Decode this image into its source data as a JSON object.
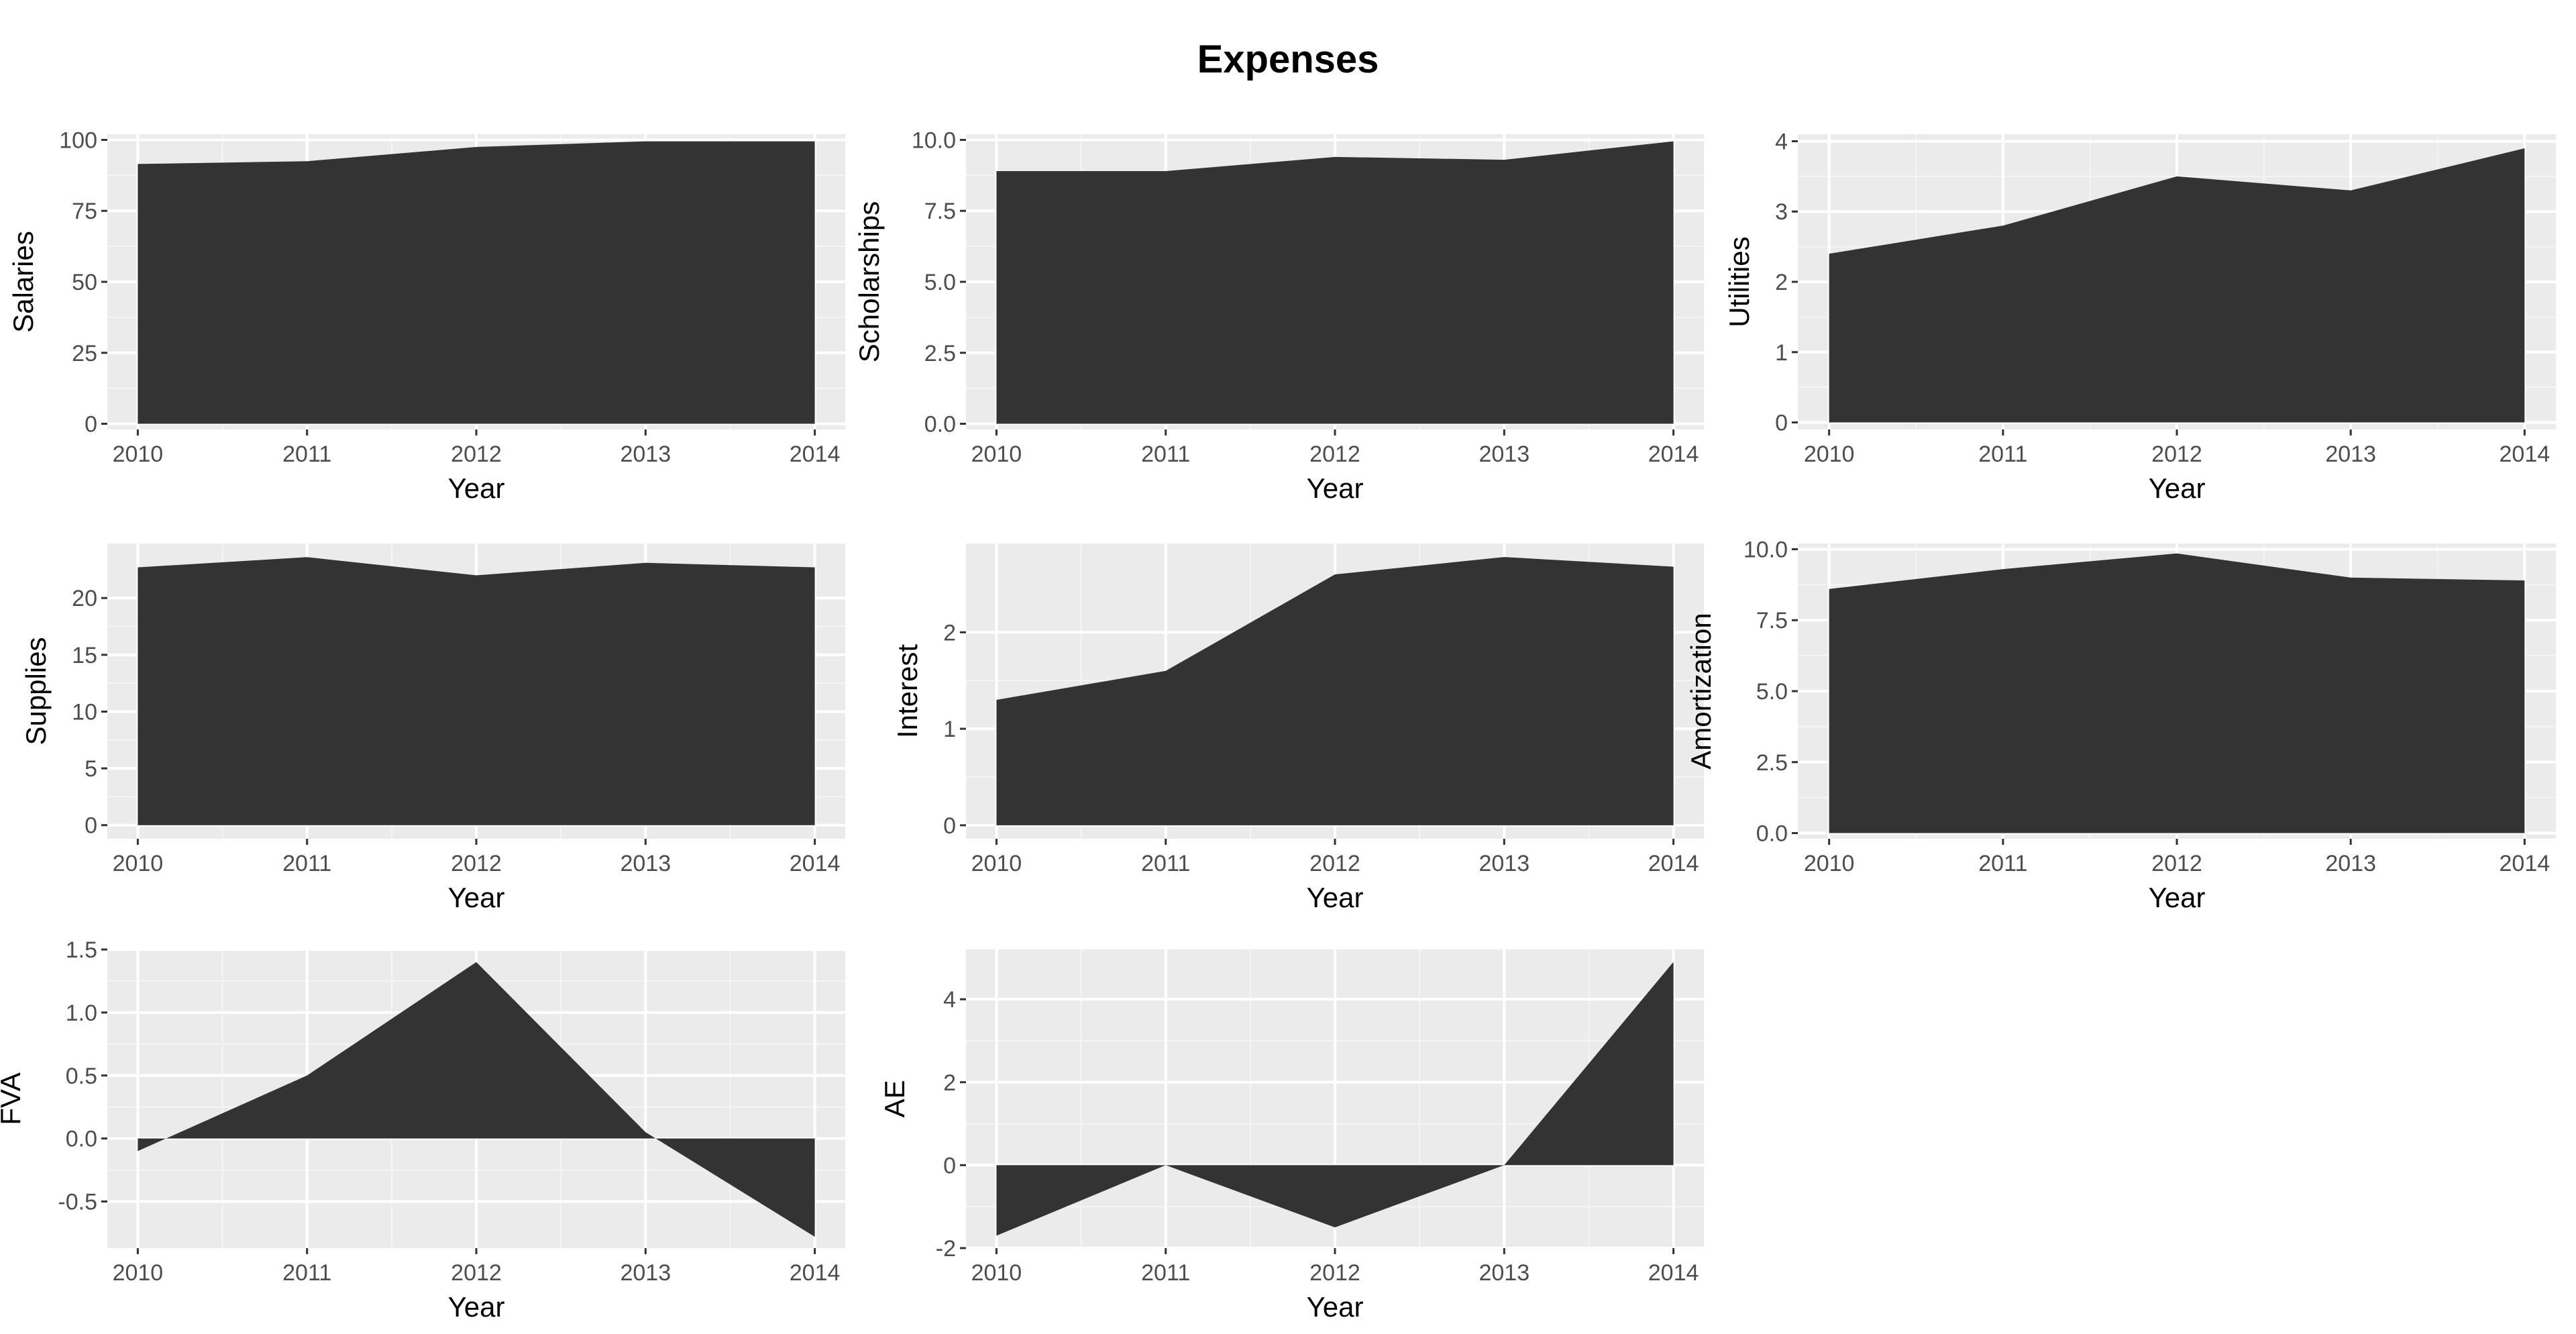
{
  "title": "Expenses",
  "colors": {
    "panel_background": "#ebebeb",
    "grid_major": "#ffffff",
    "grid_minor": "#f5f5f5",
    "area_fill": "#333333",
    "tick_text": "#4d4d4d",
    "title_text": "#000000"
  },
  "chart_data": [
    {
      "type": "area",
      "xlabel": "Year",
      "ylabel": "Salaries",
      "x": [
        2010,
        2011,
        2012,
        2013,
        2014
      ],
      "values": [
        91.5,
        92.5,
        97.5,
        99.5,
        99.5
      ],
      "ylim": [
        -2,
        102
      ],
      "yticks": [
        0,
        25,
        50,
        75,
        100
      ],
      "yticklabels": [
        "0",
        "25",
        "50",
        "75",
        "100"
      ],
      "xticklabels": [
        "2010",
        "2011",
        "2012",
        "2013",
        "2014"
      ],
      "grid": true
    },
    {
      "type": "area",
      "xlabel": "Year",
      "ylabel": "Scholarships",
      "x": [
        2010,
        2011,
        2012,
        2013,
        2014
      ],
      "values": [
        8.9,
        8.9,
        9.4,
        9.3,
        9.95
      ],
      "ylim": [
        -0.2,
        10.2
      ],
      "yticks": [
        0,
        2.5,
        5,
        7.5,
        10
      ],
      "yticklabels": [
        "0.0",
        "2.5",
        "5.0",
        "7.5",
        "10.0"
      ],
      "xticklabels": [
        "2010",
        "2011",
        "2012",
        "2013",
        "2014"
      ],
      "grid": true
    },
    {
      "type": "area",
      "xlabel": "Year",
      "ylabel": "Utilities",
      "x": [
        2010,
        2011,
        2012,
        2013,
        2014
      ],
      "values": [
        2.4,
        2.8,
        3.5,
        3.3,
        3.9
      ],
      "ylim": [
        -0.1,
        4.1
      ],
      "yticks": [
        0,
        1,
        2,
        3,
        4
      ],
      "yticklabels": [
        "0",
        "1",
        "2",
        "3",
        "4"
      ],
      "xticklabels": [
        "2010",
        "2011",
        "2012",
        "2013",
        "2014"
      ],
      "grid": true
    },
    {
      "type": "area",
      "xlabel": "Year",
      "ylabel": "Supplies",
      "x": [
        2010,
        2011,
        2012,
        2013,
        2014
      ],
      "values": [
        22.7,
        23.6,
        22.0,
        23.1,
        22.7
      ],
      "ylim": [
        -1.2,
        24.8
      ],
      "yticks": [
        0,
        5,
        10,
        15,
        20
      ],
      "yticklabels": [
        "0",
        "5",
        "10",
        "15",
        "20"
      ],
      "xticklabels": [
        "2010",
        "2011",
        "2012",
        "2013",
        "2014"
      ],
      "grid": true
    },
    {
      "type": "area",
      "xlabel": "Year",
      "ylabel": "Interest",
      "x": [
        2010,
        2011,
        2012,
        2013,
        2014
      ],
      "values": [
        1.3,
        1.6,
        2.6,
        2.78,
        2.68
      ],
      "ylim": [
        -0.14,
        2.92
      ],
      "yticks": [
        0,
        1,
        2
      ],
      "yticklabels": [
        "0",
        "1",
        "2"
      ],
      "xticklabels": [
        "2010",
        "2011",
        "2012",
        "2013",
        "2014"
      ],
      "grid": true
    },
    {
      "type": "area",
      "xlabel": "Year",
      "ylabel": "Amortization",
      "x": [
        2010,
        2011,
        2012,
        2013,
        2014
      ],
      "values": [
        8.6,
        9.3,
        9.85,
        9.0,
        8.9
      ],
      "ylim": [
        -0.2,
        10.2
      ],
      "yticks": [
        0,
        2.5,
        5,
        7.5,
        10
      ],
      "yticklabels": [
        "0.0",
        "2.5",
        "5.0",
        "7.5",
        "10.0"
      ],
      "xticklabels": [
        "2010",
        "2011",
        "2012",
        "2013",
        "2014"
      ],
      "grid": true
    },
    {
      "type": "area",
      "xlabel": "Year",
      "ylabel": "FVA",
      "x": [
        2010,
        2011,
        2012,
        2013,
        2014
      ],
      "values": [
        -0.1,
        0.5,
        1.4,
        0.05,
        -0.78
      ],
      "ylim": [
        -0.87,
        1.5
      ],
      "yticks": [
        -0.5,
        0,
        0.5,
        1,
        1.5
      ],
      "yticklabels": [
        "-0.5",
        "0.0",
        "0.5",
        "1.0",
        "1.5"
      ],
      "xticklabels": [
        "2010",
        "2011",
        "2012",
        "2013",
        "2014"
      ],
      "grid": true
    },
    {
      "type": "area",
      "xlabel": "Year",
      "ylabel": "AE",
      "x": [
        2010,
        2011,
        2012,
        2013,
        2014
      ],
      "values": [
        -1.7,
        0.0,
        -1.5,
        0.0,
        4.9
      ],
      "ylim": [
        -2.0,
        5.2
      ],
      "yticks": [
        -2,
        0,
        2,
        4
      ],
      "yticklabels": [
        "-2",
        "0",
        "2",
        "4"
      ],
      "xticklabels": [
        "2010",
        "2011",
        "2012",
        "2013",
        "2014"
      ],
      "grid": true
    }
  ]
}
